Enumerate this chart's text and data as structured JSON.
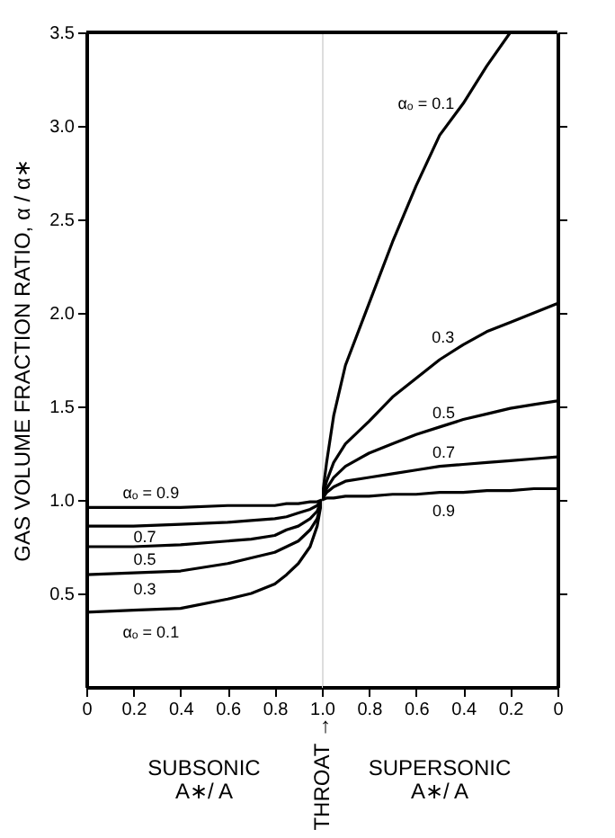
{
  "chart_data": [
    {
      "type": "line",
      "ylabel": "GAS VOLUME FRACTION RATIO,  α / α∗",
      "x": [
        0,
        0.2,
        0.4,
        0.6,
        0.7,
        0.8,
        0.85,
        0.9,
        0.95,
        0.98,
        1.0
      ],
      "series": [
        {
          "name": "αₒ = 0.1",
          "color": "#000000",
          "values": [
            0.4,
            0.41,
            0.42,
            0.47,
            0.5,
            0.55,
            0.6,
            0.66,
            0.75,
            0.86,
            1.0
          ]
        },
        {
          "name": "0.3",
          "color": "#000000",
          "values": [
            0.6,
            0.61,
            0.62,
            0.66,
            0.69,
            0.72,
            0.75,
            0.78,
            0.84,
            0.9,
            1.0
          ]
        },
        {
          "name": "0.5",
          "color": "#000000",
          "values": [
            0.75,
            0.75,
            0.76,
            0.78,
            0.79,
            0.81,
            0.84,
            0.86,
            0.9,
            0.94,
            1.0
          ]
        },
        {
          "name": "0.7",
          "color": "#000000",
          "values": [
            0.86,
            0.86,
            0.87,
            0.88,
            0.89,
            0.9,
            0.91,
            0.93,
            0.95,
            0.97,
            1.0
          ]
        },
        {
          "name": "αₒ = 0.9",
          "color": "#000000",
          "values": [
            0.96,
            0.96,
            0.96,
            0.97,
            0.97,
            0.97,
            0.98,
            0.98,
            0.99,
            0.99,
            1.0
          ]
        }
      ],
      "annotations": [
        "SUBSONIC\nA∗/ A",
        "THROAT →"
      ],
      "xlim": [
        0,
        1
      ],
      "ylim": [
        0,
        3.5
      ],
      "xticks": [
        0,
        0.2,
        0.4,
        0.6,
        0.8,
        {
          "value": 1.0,
          "label": "1.0"
        }
      ],
      "yticks": [
        {
          "value": 0.5,
          "label": "0.5"
        },
        {
          "value": 1.0,
          "label": "1.0"
        },
        {
          "value": 1.5,
          "label": "1.5"
        },
        {
          "value": 2.0,
          "label": "2.0"
        },
        {
          "value": 2.5,
          "label": "2.5"
        },
        {
          "value": 3.0,
          "label": "3.0"
        },
        {
          "value": 3.5,
          "label": "3.5"
        }
      ],
      "grid": false,
      "marker": "none",
      "line_style": "solid"
    },
    {
      "type": "line",
      "x": [
        1.0,
        0.98,
        0.95,
        0.9,
        0.8,
        0.7,
        0.6,
        0.5,
        0.4,
        0.3,
        0.2,
        0.1,
        0.0
      ],
      "series": [
        {
          "name": "αₒ = 0.1",
          "color": "#000000",
          "values": [
            1.0,
            1.2,
            1.45,
            1.72,
            2.05,
            2.38,
            2.68,
            2.95,
            3.12,
            3.32,
            3.5,
            null,
            null
          ]
        },
        {
          "name": "0.3",
          "color": "#000000",
          "values": [
            1.0,
            1.1,
            1.2,
            1.3,
            1.42,
            1.55,
            1.65,
            1.75,
            1.83,
            1.9,
            1.95,
            2.0,
            2.05
          ]
        },
        {
          "name": "0.5",
          "color": "#000000",
          "values": [
            1.0,
            1.06,
            1.12,
            1.18,
            1.25,
            1.3,
            1.35,
            1.39,
            1.43,
            1.46,
            1.49,
            1.51,
            1.53
          ]
        },
        {
          "name": "0.7",
          "color": "#000000",
          "values": [
            1.0,
            1.04,
            1.07,
            1.1,
            1.12,
            1.14,
            1.16,
            1.18,
            1.19,
            1.2,
            1.21,
            1.22,
            1.23
          ]
        },
        {
          "name": "0.9",
          "color": "#000000",
          "values": [
            1.0,
            1.01,
            1.01,
            1.02,
            1.02,
            1.03,
            1.03,
            1.04,
            1.04,
            1.05,
            1.05,
            1.06,
            1.06
          ]
        }
      ],
      "annotations": [
        "SUPERSONIC\nA∗/ A"
      ],
      "xlim": [
        1,
        0
      ],
      "ylim": [
        0,
        3.5
      ],
      "xticks": [
        {
          "value": 1.0,
          "label": null
        },
        0.8,
        0.6,
        0.4,
        0.2,
        0
      ],
      "yticks": [
        {
          "value": 0.5,
          "label": null
        },
        {
          "value": 1.0,
          "label": null
        },
        {
          "value": 1.5,
          "label": null
        },
        {
          "value": 2.0,
          "label": null
        },
        {
          "value": 2.5,
          "label": null
        },
        {
          "value": 3.0,
          "label": null
        },
        {
          "value": 3.5,
          "label": null
        }
      ],
      "tick_labels": "x",
      "grid": false,
      "marker": "none",
      "line_style": "solid"
    }
  ]
}
